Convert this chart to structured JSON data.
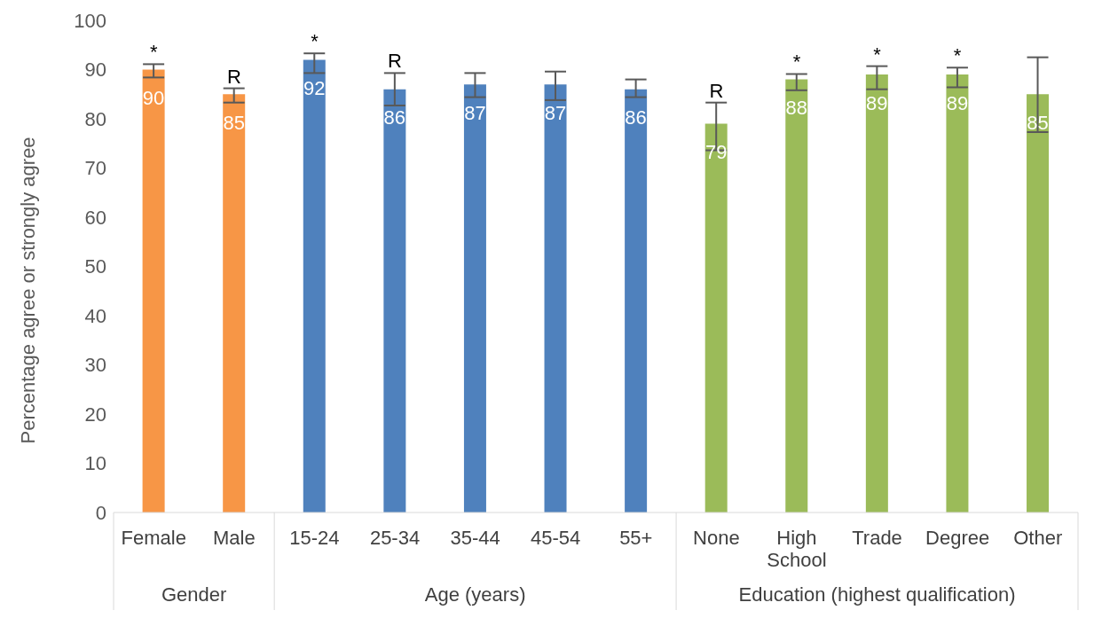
{
  "chart_data": {
    "type": "bar",
    "ylabel": "Percentage agree or strongly agree",
    "categories": [
      "Female",
      "Male",
      "15-24",
      "25-34",
      "35-44",
      "45-54",
      "55+",
      "None",
      "High School",
      "Trade",
      "Degree",
      "Other"
    ],
    "values": [
      90,
      85,
      92,
      86,
      87,
      87,
      86,
      79,
      88,
      89,
      89,
      85
    ],
    "colors": [
      "#f79646",
      "#f79646",
      "#4f81bd",
      "#4f81bd",
      "#4f81bd",
      "#4f81bd",
      "#4f81bd",
      "#9bbb59",
      "#9bbb59",
      "#9bbb59",
      "#9bbb59",
      "#9bbb59"
    ],
    "errors": [
      [
        88.4,
        91.1
      ],
      [
        83.3,
        86.2
      ],
      [
        89.3,
        93.3
      ],
      [
        82.7,
        89.3
      ],
      [
        84.4,
        89.3
      ],
      [
        83.8,
        89.6
      ],
      [
        84.4,
        88.0
      ],
      [
        73.6,
        83.3
      ],
      [
        85.8,
        89.1
      ],
      [
        86.0,
        90.7
      ],
      [
        86.4,
        90.4
      ],
      [
        77.3,
        92.5
      ]
    ],
    "data_labels": true,
    "ylim": [
      0,
      100
    ],
    "yticks": [
      0,
      10,
      20,
      30,
      40,
      50,
      60,
      70,
      80,
      90,
      100
    ],
    "grid": false,
    "legend": false,
    "annotations": [
      {
        "text": "*",
        "x": "Female",
        "y": 91.1
      },
      {
        "text": "R",
        "x": "Male",
        "y": 86.2
      },
      {
        "text": "*",
        "x": "15-24",
        "y": 93.3
      },
      {
        "text": "R",
        "x": "25-34",
        "y": 89.3
      },
      {
        "text": "R",
        "x": "None",
        "y": 83.3
      },
      {
        "text": "*",
        "x": "High School",
        "y": 89.1
      },
      {
        "text": "*",
        "x": "Trade",
        "y": 90.7
      },
      {
        "text": "*",
        "x": "Degree",
        "y": 90.4
      },
      "Gender",
      "Age (years)",
      "Education (highest qualification)"
    ]
  }
}
